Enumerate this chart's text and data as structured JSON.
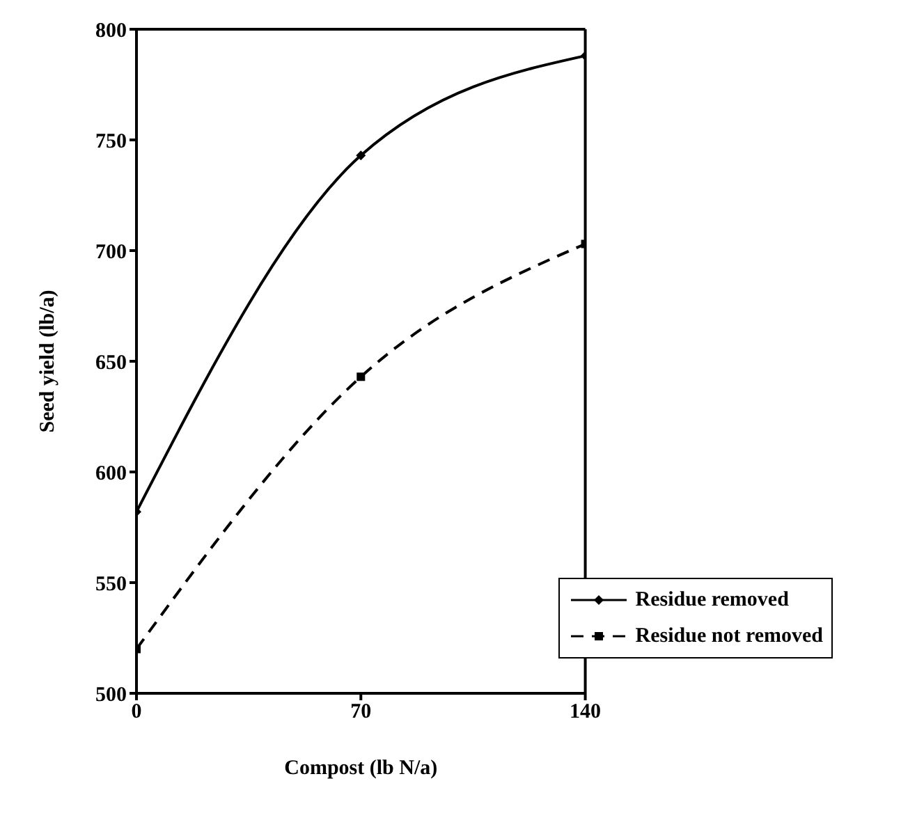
{
  "chart_data": {
    "type": "line",
    "xlabel": "Compost (lb N/a)",
    "ylabel": "Seed yield (lb/a)",
    "x": [
      0,
      70,
      140
    ],
    "series": [
      {
        "name": "Residue removed",
        "color": "#000000",
        "values": [
          582,
          743,
          788
        ],
        "marker": "diamond",
        "line_style": "solid"
      },
      {
        "name": "Residue not removed",
        "color": "#000000",
        "values": [
          520,
          643,
          703
        ],
        "marker": "square",
        "line_style": "dashed"
      }
    ],
    "xlim": [
      0,
      140
    ],
    "xticks": [
      0,
      70,
      140
    ],
    "ylim": [
      500,
      800
    ],
    "yticks": [
      500,
      550,
      600,
      650,
      700,
      750,
      800
    ],
    "grid": false,
    "legend": "bottom right"
  }
}
